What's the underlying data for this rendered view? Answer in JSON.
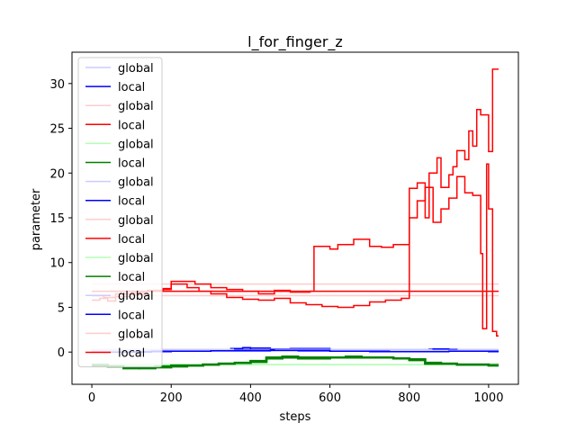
{
  "chart_data": {
    "type": "line",
    "title": "l_for_finger_z",
    "xlabel": "steps",
    "ylabel": "parameter",
    "xlim": [
      -50,
      1075
    ],
    "ylim": [
      -3.6,
      33.5
    ],
    "xticks": [
      0,
      200,
      400,
      600,
      800,
      1000
    ],
    "yticks": [
      0,
      5,
      10,
      15,
      20,
      25,
      30
    ],
    "legend_position": "upper-left",
    "line_style": "steps",
    "series": [
      {
        "name": "global",
        "color": "#ccccff",
        "x": [
          0,
          1025
        ],
        "y": [
          0.1,
          0.1
        ]
      },
      {
        "name": "local",
        "color": "#0000ff",
        "x": [
          0,
          100,
          200,
          300,
          350,
          380,
          400,
          450,
          500,
          600,
          700,
          760,
          800,
          850,
          900,
          1000,
          1025
        ],
        "y": [
          0.2,
          0.2,
          0.25,
          0.3,
          0.4,
          0.5,
          0.45,
          0.35,
          0.4,
          0.3,
          0.2,
          0.15,
          0.3,
          0.35,
          0.2,
          0.1,
          0.1
        ]
      },
      {
        "name": "global",
        "color": "#ffcccc",
        "x": [
          0,
          1025
        ],
        "y": [
          7.6,
          7.6
        ]
      },
      {
        "name": "local",
        "color": "#ff0000",
        "x": [
          0,
          20,
          40,
          60,
          100,
          140,
          180,
          200,
          260,
          300,
          340,
          380,
          420,
          460,
          500,
          550,
          560,
          600,
          620,
          660,
          700,
          730,
          760,
          800,
          820,
          840,
          850,
          870,
          880,
          900,
          910,
          920,
          940,
          950,
          960,
          970,
          980,
          1000,
          1010,
          1025
        ],
        "y": [
          5.8,
          6.0,
          5.7,
          6.2,
          6.6,
          6.9,
          7.1,
          7.9,
          7.6,
          7.2,
          7.0,
          6.8,
          6.5,
          6.9,
          6.7,
          6.8,
          11.8,
          11.5,
          12.0,
          12.6,
          11.8,
          11.7,
          12.0,
          18.3,
          18.9,
          15.0,
          20.0,
          21.7,
          18.4,
          19.8,
          20.7,
          22.5,
          21.5,
          24.7,
          23.0,
          27.1,
          26.5,
          22.4,
          31.6,
          31.6
        ]
      },
      {
        "name": "global",
        "color": "#b3ffb3",
        "x": [
          0,
          1025
        ],
        "y": [
          -1.4,
          -1.4
        ]
      },
      {
        "name": "local",
        "color": "#008000",
        "x": [
          0,
          40,
          80,
          120,
          160,
          200,
          240,
          280,
          320,
          360,
          400,
          440,
          480,
          520,
          560,
          600,
          640,
          680,
          720,
          760,
          800,
          840,
          880,
          920,
          960,
          1000,
          1025
        ],
        "y": [
          -1.4,
          -1.5,
          -1.7,
          -1.8,
          -1.7,
          -1.6,
          -1.5,
          -1.4,
          -1.3,
          -1.3,
          -1.1,
          -0.6,
          -0.6,
          -0.7,
          -0.7,
          -0.6,
          -0.6,
          -0.6,
          -0.6,
          -0.7,
          -0.8,
          -1.2,
          -1.3,
          -1.4,
          -1.4,
          -1.4,
          -1.4
        ]
      },
      {
        "name": "global",
        "color": "#ccccff",
        "x": [
          0,
          1025
        ],
        "y": [
          0.3,
          0.3
        ]
      },
      {
        "name": "local",
        "color": "#0000ff",
        "x": [
          0,
          100,
          200,
          300,
          360,
          400,
          460,
          520,
          600,
          700,
          800,
          860,
          920,
          1000,
          1025
        ],
        "y": [
          0.0,
          0.05,
          0.1,
          0.2,
          0.3,
          0.25,
          0.2,
          0.15,
          0.1,
          0.05,
          0.2,
          0.3,
          0.15,
          0.05,
          0.05
        ]
      },
      {
        "name": "global",
        "color": "#ffcccc",
        "x": [
          0,
          1025
        ],
        "y": [
          6.3,
          6.3
        ]
      },
      {
        "name": "local",
        "color": "#ff0000",
        "x": [
          0,
          30,
          60,
          100,
          140,
          180,
          200,
          240,
          270,
          300,
          340,
          380,
          420,
          460,
          500,
          540,
          580,
          620,
          660,
          700,
          740,
          780,
          800,
          820,
          840,
          860,
          880,
          900,
          920,
          940,
          960,
          980,
          985,
          995,
          1000,
          1010,
          1020,
          1025
        ],
        "y": [
          6.3,
          6.1,
          6.5,
          6.4,
          6.8,
          7.0,
          7.6,
          7.2,
          6.8,
          6.5,
          6.1,
          5.9,
          5.8,
          6.0,
          5.5,
          5.3,
          5.1,
          5.0,
          5.2,
          5.6,
          5.8,
          6.0,
          15.0,
          16.9,
          18.4,
          14.5,
          16.0,
          17.2,
          19.6,
          17.8,
          17.5,
          11.0,
          2.6,
          21.0,
          16.0,
          2.3,
          1.8,
          1.8
        ]
      },
      {
        "name": "global",
        "color": "#b3ffb3",
        "x": [
          0,
          1025
        ],
        "y": [
          -1.4,
          -1.4
        ]
      },
      {
        "name": "local",
        "color": "#008000",
        "x": [
          0,
          40,
          80,
          120,
          160,
          200,
          240,
          280,
          320,
          360,
          400,
          440,
          480,
          520,
          560,
          600,
          640,
          680,
          720,
          760,
          800,
          840,
          880,
          920,
          960,
          1000,
          1025
        ],
        "y": [
          -1.5,
          -1.6,
          -1.8,
          -1.7,
          -1.6,
          -1.5,
          -1.5,
          -1.4,
          -1.3,
          -1.2,
          -1.0,
          -0.7,
          -0.5,
          -0.6,
          -0.6,
          -0.6,
          -0.5,
          -0.6,
          -0.6,
          -0.7,
          -0.9,
          -1.3,
          -1.3,
          -1.4,
          -1.4,
          -1.5,
          -1.5
        ]
      },
      {
        "name": "global",
        "color": "#ccccff",
        "x": [
          0,
          1025
        ],
        "y": [
          0.2,
          0.2
        ]
      },
      {
        "name": "local",
        "color": "#0000ff",
        "x": [
          0,
          150,
          300,
          450,
          600,
          750,
          900,
          1025
        ],
        "y": [
          0.0,
          0.1,
          0.15,
          0.2,
          0.1,
          0.05,
          0.1,
          0.1
        ]
      },
      {
        "name": "global",
        "color": "#ffcccc",
        "x": [
          0,
          1025
        ],
        "y": [
          6.8,
          6.8
        ]
      },
      {
        "name": "local",
        "color": "#ff0000",
        "x": [
          0,
          1025
        ],
        "y": [
          6.8,
          6.8
        ]
      }
    ]
  }
}
